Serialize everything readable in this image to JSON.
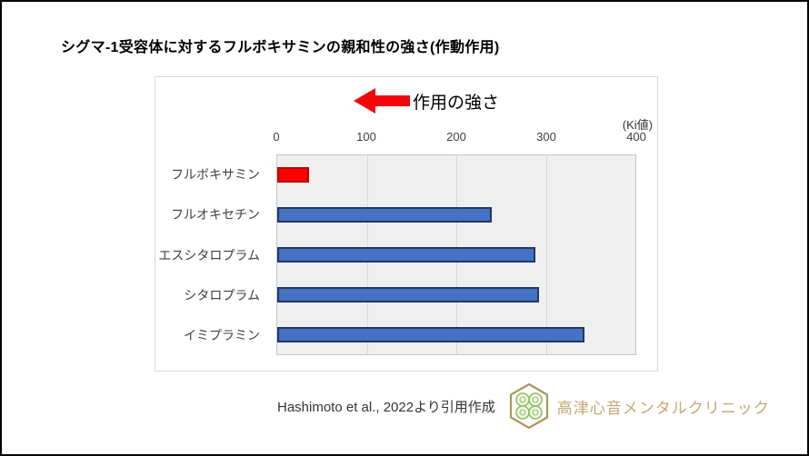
{
  "page": {
    "title": "シグマ-1受容体に対するフルボキサミンの親和性の強さ(作動作用)"
  },
  "chart": {
    "arrow_label": "作用の強さ",
    "unit_label": "(Ki値)"
  },
  "chart_data": {
    "type": "bar",
    "orientation": "horizontal",
    "title": "シグマ-1受容体に対するフルボキサミンの親和性の強さ(作動作用)",
    "categories": [
      "フルボキサミン",
      "フルオキセチン",
      "エスシタロプラム",
      "シタロプラム",
      "イミプラミン"
    ],
    "values": [
      36,
      240,
      288,
      292,
      343
    ],
    "xlim": [
      0,
      400
    ],
    "xticks": [
      0,
      100,
      200,
      300,
      400
    ],
    "xlabel": "(Ki値)",
    "ylabel": "",
    "grid": true,
    "legend_position": "none",
    "annotation": "作用の強さ",
    "bar_colors": [
      "#ff0000",
      "#4472c4",
      "#4472c4",
      "#4472c4",
      "#4472c4"
    ],
    "bar_border_colors": [
      "#c00000",
      "#1f3864",
      "#1f3864",
      "#1f3864",
      "#1f3864"
    ]
  },
  "footer": {
    "citation": "Hashimoto et al., 2022より引用作成",
    "clinic_name": "高津心音メンタルクリニック"
  },
  "colors": {
    "accent_red": "#ff0000",
    "bar_blue": "#4472c4",
    "plot_background": "#efefef",
    "gridline": "#d8d8d8",
    "logo_gold": "#a8965c",
    "logo_green": "#8cc05e",
    "clinic_name_text": "#c3aa70"
  }
}
